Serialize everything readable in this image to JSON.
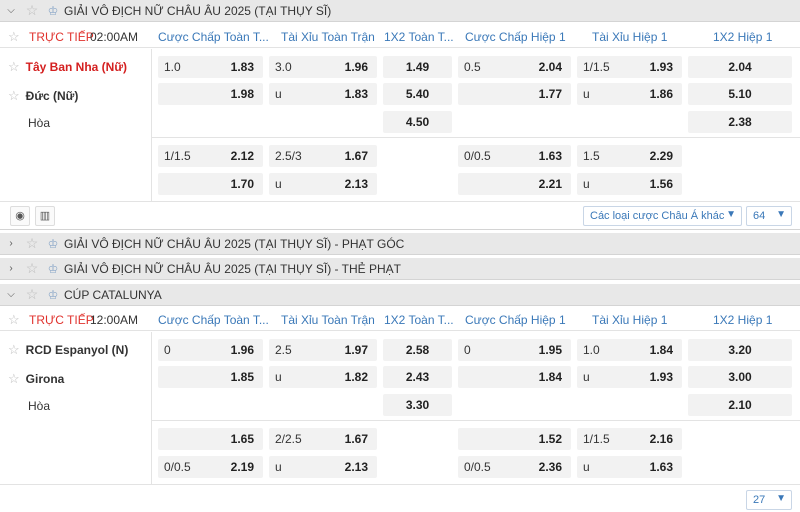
{
  "columns": [
    "Cược Chấp Toàn T...",
    "Tài Xỉu Toàn Trận",
    "1X2 Toàn T...",
    "Cược Chấp Hiệp 1",
    "Tài Xỉu Hiệp 1",
    "1X2 Hiệp 1"
  ],
  "league1": {
    "title": "GIẢI VÔ ĐỊCH NỮ CHÂU ÂU 2025 (TẠI THỤY SĨ)"
  },
  "match1": {
    "live": "TRỰC TIẾP",
    "time": "02:00AM",
    "home": "Tây Ban Nha (Nữ)",
    "away": "Đức (Nữ)",
    "draw": "Hòa",
    "r1": {
      "hc": "1.0",
      "hco": "1.83",
      "ou": "3.0",
      "ouo": "1.96",
      "x1": "1.49",
      "h1hc": "0.5",
      "h1hco": "2.04",
      "h1ou": "1/1.5",
      "h1ouo": "1.93",
      "h1x": "2.04"
    },
    "r2": {
      "hco": "1.98",
      "ou": "u",
      "ouo": "1.83",
      "x2": "5.40",
      "h1hco": "1.77",
      "h1ou": "u",
      "h1ouo": "1.86",
      "h1x": "5.10"
    },
    "r3": {
      "x3": "4.50",
      "h1x": "2.38"
    },
    "r4": {
      "hc": "1/1.5",
      "hco": "2.12",
      "ou": "2.5/3",
      "ouo": "1.67",
      "h1hc": "0/0.5",
      "h1hco": "1.63",
      "h1ou": "1.5",
      "h1ouo": "2.29"
    },
    "r5": {
      "hco": "1.70",
      "ou": "u",
      "ouo": "2.13",
      "h1hco": "2.21",
      "h1ou": "u",
      "h1ouo": "1.56"
    }
  },
  "tools": {
    "icon1": "stats-icon",
    "select_label": "Các loại cược Châu Á khác",
    "count": "64"
  },
  "league2": {
    "title": "GIẢI VÔ ĐỊCH NỮ CHÂU ÂU 2025 (TẠI THỤY SĨ) - PHẠT GÓC"
  },
  "league3": {
    "title": "GIẢI VÔ ĐỊCH NỮ CHÂU ÂU 2025 (TẠI THỤY SĨ) - THẺ PHẠT"
  },
  "league4": {
    "title": "CÚP CATALUNYA"
  },
  "match2": {
    "live": "TRỰC TIẾP",
    "time": "12:00AM",
    "home": "RCD Espanyol (N)",
    "away": "Girona",
    "draw": "Hòa",
    "r1": {
      "hc": "0",
      "hco": "1.96",
      "ou": "2.5",
      "ouo": "1.97",
      "x1": "2.58",
      "h1hc": "0",
      "h1hco": "1.95",
      "h1ou": "1.0",
      "h1ouo": "1.84",
      "h1x": "3.20"
    },
    "r2": {
      "hco": "1.85",
      "ou": "u",
      "ouo": "1.82",
      "x2": "2.43",
      "h1hco": "1.84",
      "h1ou": "u",
      "h1ouo": "1.93",
      "h1x": "3.00"
    },
    "r3": {
      "x3": "3.30",
      "h1x": "2.10"
    },
    "r4": {
      "hco": "1.65",
      "ou": "2/2.5",
      "ouo": "1.67",
      "h1hco": "1.52",
      "h1ou": "1/1.5",
      "h1ouo": "2.16"
    },
    "r5": {
      "hc": "0/0.5",
      "hco": "2.19",
      "ou": "u",
      "ouo": "2.13",
      "h1hc": "0/0.5",
      "h1hco": "2.36",
      "h1ou": "u",
      "h1ouo": "1.63"
    }
  },
  "footer": {
    "count": "27"
  }
}
